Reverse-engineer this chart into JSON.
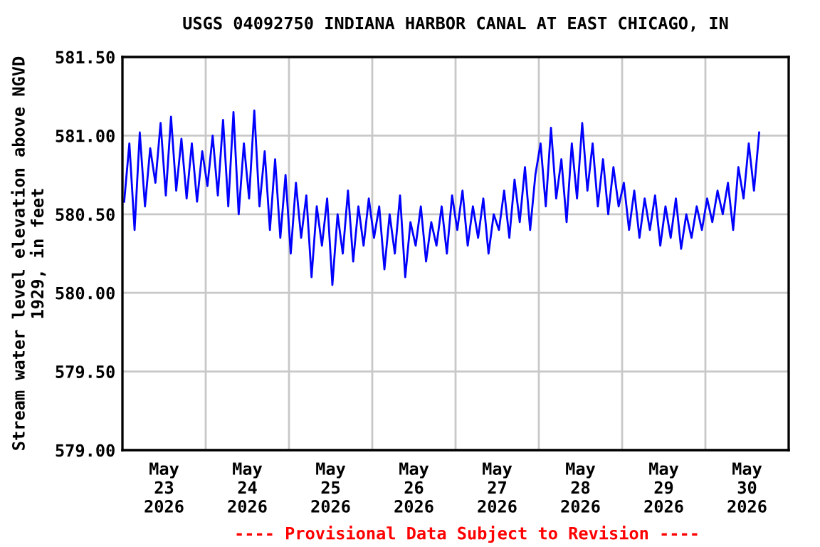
{
  "chart_data": {
    "type": "line",
    "title": "USGS 04092750 INDIANA HARBOR CANAL AT EAST CHICAGO, IN",
    "ylabel": "Stream water level elevation above NGVD\n1929, in feet",
    "annotations": [
      "---- Provisional Data Subject to Revision ----"
    ],
    "xlim": [
      "2026-05-23T00:00",
      "2026-05-31T00:00"
    ],
    "xticks": [
      {
        "value": "2026-05-23T12:00",
        "label": "May\n23\n2026"
      },
      {
        "value": "2026-05-24T00:00",
        "label": null
      },
      {
        "value": "2026-05-24T12:00",
        "label": "May\n24\n2026"
      },
      {
        "value": "2026-05-25T00:00",
        "label": null
      },
      {
        "value": "2026-05-25T12:00",
        "label": "May\n25\n2026"
      },
      {
        "value": "2026-05-26T00:00",
        "label": null
      },
      {
        "value": "2026-05-26T12:00",
        "label": "May\n26\n2026"
      },
      {
        "value": "2026-05-27T00:00",
        "label": null
      },
      {
        "value": "2026-05-27T12:00",
        "label": "May\n27\n2026"
      },
      {
        "value": "2026-05-28T00:00",
        "label": null
      },
      {
        "value": "2026-05-28T12:00",
        "label": "May\n28\n2026"
      },
      {
        "value": "2026-05-29T00:00",
        "label": null
      },
      {
        "value": "2026-05-29T12:00",
        "label": "May\n29\n2026"
      },
      {
        "value": "2026-05-30T00:00",
        "label": null
      },
      {
        "value": "2026-05-30T12:00",
        "label": "May\n30\n2026"
      }
    ],
    "ylim": [
      579.0,
      581.5
    ],
    "yticks": [
      {
        "value": 579.0,
        "label": "579.00"
      },
      {
        "value": 579.5,
        "label": "579.50"
      },
      {
        "value": 580.0,
        "label": "580.00"
      },
      {
        "value": 580.5,
        "label": "580.50"
      },
      {
        "value": 581.0,
        "label": "581.00"
      },
      {
        "value": 581.5,
        "label": "581.50"
      }
    ],
    "grid": true,
    "legend": false,
    "marker": "none",
    "line_style": "solid",
    "series": [
      {
        "color": "#0000ff",
        "x": [
          "2026-05-23T00:30",
          "2026-05-23T02:00",
          "2026-05-23T03:30",
          "2026-05-23T05:00",
          "2026-05-23T06:30",
          "2026-05-23T08:00",
          "2026-05-23T09:30",
          "2026-05-23T11:00",
          "2026-05-23T12:30",
          "2026-05-23T14:00",
          "2026-05-23T15:30",
          "2026-05-23T17:00",
          "2026-05-23T18:30",
          "2026-05-23T20:00",
          "2026-05-23T21:30",
          "2026-05-23T23:00",
          "2026-05-24T00:30",
          "2026-05-24T02:00",
          "2026-05-24T03:30",
          "2026-05-24T05:00",
          "2026-05-24T06:30",
          "2026-05-24T08:00",
          "2026-05-24T09:30",
          "2026-05-24T11:00",
          "2026-05-24T12:30",
          "2026-05-24T14:00",
          "2026-05-24T15:30",
          "2026-05-24T17:00",
          "2026-05-24T18:30",
          "2026-05-24T20:00",
          "2026-05-24T21:30",
          "2026-05-24T23:00",
          "2026-05-25T00:30",
          "2026-05-25T02:00",
          "2026-05-25T03:30",
          "2026-05-25T05:00",
          "2026-05-25T06:30",
          "2026-05-25T08:00",
          "2026-05-25T09:30",
          "2026-05-25T11:00",
          "2026-05-25T12:30",
          "2026-05-25T14:00",
          "2026-05-25T15:30",
          "2026-05-25T17:00",
          "2026-05-25T18:30",
          "2026-05-25T20:00",
          "2026-05-25T21:30",
          "2026-05-25T23:00",
          "2026-05-26T00:30",
          "2026-05-26T02:00",
          "2026-05-26T03:30",
          "2026-05-26T05:00",
          "2026-05-26T06:30",
          "2026-05-26T08:00",
          "2026-05-26T09:30",
          "2026-05-26T11:00",
          "2026-05-26T12:30",
          "2026-05-26T14:00",
          "2026-05-26T15:30",
          "2026-05-26T17:00",
          "2026-05-26T18:30",
          "2026-05-26T20:00",
          "2026-05-26T21:30",
          "2026-05-26T23:00",
          "2026-05-27T00:30",
          "2026-05-27T02:00",
          "2026-05-27T03:30",
          "2026-05-27T05:00",
          "2026-05-27T06:30",
          "2026-05-27T08:00",
          "2026-05-27T09:30",
          "2026-05-27T11:00",
          "2026-05-27T12:30",
          "2026-05-27T14:00",
          "2026-05-27T15:30",
          "2026-05-27T17:00",
          "2026-05-27T18:30",
          "2026-05-27T20:00",
          "2026-05-27T21:30",
          "2026-05-27T23:00",
          "2026-05-28T00:30",
          "2026-05-28T02:00",
          "2026-05-28T03:30",
          "2026-05-28T05:00",
          "2026-05-28T06:30",
          "2026-05-28T08:00",
          "2026-05-28T09:30",
          "2026-05-28T11:00",
          "2026-05-28T12:30",
          "2026-05-28T14:00",
          "2026-05-28T15:30",
          "2026-05-28T17:00",
          "2026-05-28T18:30",
          "2026-05-28T20:00",
          "2026-05-28T21:30",
          "2026-05-28T23:00",
          "2026-05-29T00:30",
          "2026-05-29T02:00",
          "2026-05-29T03:30",
          "2026-05-29T05:00",
          "2026-05-29T06:30",
          "2026-05-29T08:00",
          "2026-05-29T09:30",
          "2026-05-29T11:00",
          "2026-05-29T12:30",
          "2026-05-29T14:00",
          "2026-05-29T15:30",
          "2026-05-29T17:00",
          "2026-05-29T18:30",
          "2026-05-29T20:00",
          "2026-05-29T21:30",
          "2026-05-29T23:00",
          "2026-05-30T00:30",
          "2026-05-30T02:00",
          "2026-05-30T03:30",
          "2026-05-30T05:00",
          "2026-05-30T06:30",
          "2026-05-30T08:00",
          "2026-05-30T09:30",
          "2026-05-30T11:00",
          "2026-05-30T12:30",
          "2026-05-30T14:00",
          "2026-05-30T15:30"
        ],
        "values": [
          580.58,
          580.95,
          580.4,
          581.02,
          580.55,
          580.92,
          580.7,
          581.08,
          580.62,
          581.12,
          580.65,
          580.98,
          580.6,
          580.95,
          580.58,
          580.9,
          580.68,
          581.0,
          580.62,
          581.1,
          580.55,
          581.15,
          580.5,
          580.95,
          580.6,
          581.16,
          580.55,
          580.9,
          580.4,
          580.85,
          580.35,
          580.75,
          580.25,
          580.7,
          580.35,
          580.62,
          580.1,
          580.55,
          580.3,
          580.6,
          580.05,
          580.5,
          580.25,
          580.65,
          580.2,
          580.55,
          580.3,
          580.6,
          580.35,
          580.55,
          580.15,
          580.5,
          580.25,
          580.62,
          580.1,
          580.45,
          580.3,
          580.55,
          580.2,
          580.45,
          580.3,
          580.55,
          580.25,
          580.62,
          580.4,
          580.65,
          580.3,
          580.55,
          580.35,
          580.6,
          580.25,
          580.5,
          580.4,
          580.65,
          580.35,
          580.72,
          580.45,
          580.8,
          580.4,
          580.75,
          580.95,
          580.55,
          581.05,
          580.6,
          580.85,
          580.45,
          580.95,
          580.6,
          581.08,
          580.65,
          580.95,
          580.55,
          580.85,
          580.5,
          580.8,
          580.55,
          580.7,
          580.4,
          580.65,
          580.35,
          580.6,
          580.4,
          580.62,
          580.3,
          580.55,
          580.35,
          580.6,
          580.28,
          580.5,
          580.35,
          580.55,
          580.4,
          580.6,
          580.45,
          580.65,
          580.5,
          580.7,
          580.4,
          580.8,
          580.6,
          580.95,
          580.65,
          581.02
        ]
      }
    ]
  }
}
